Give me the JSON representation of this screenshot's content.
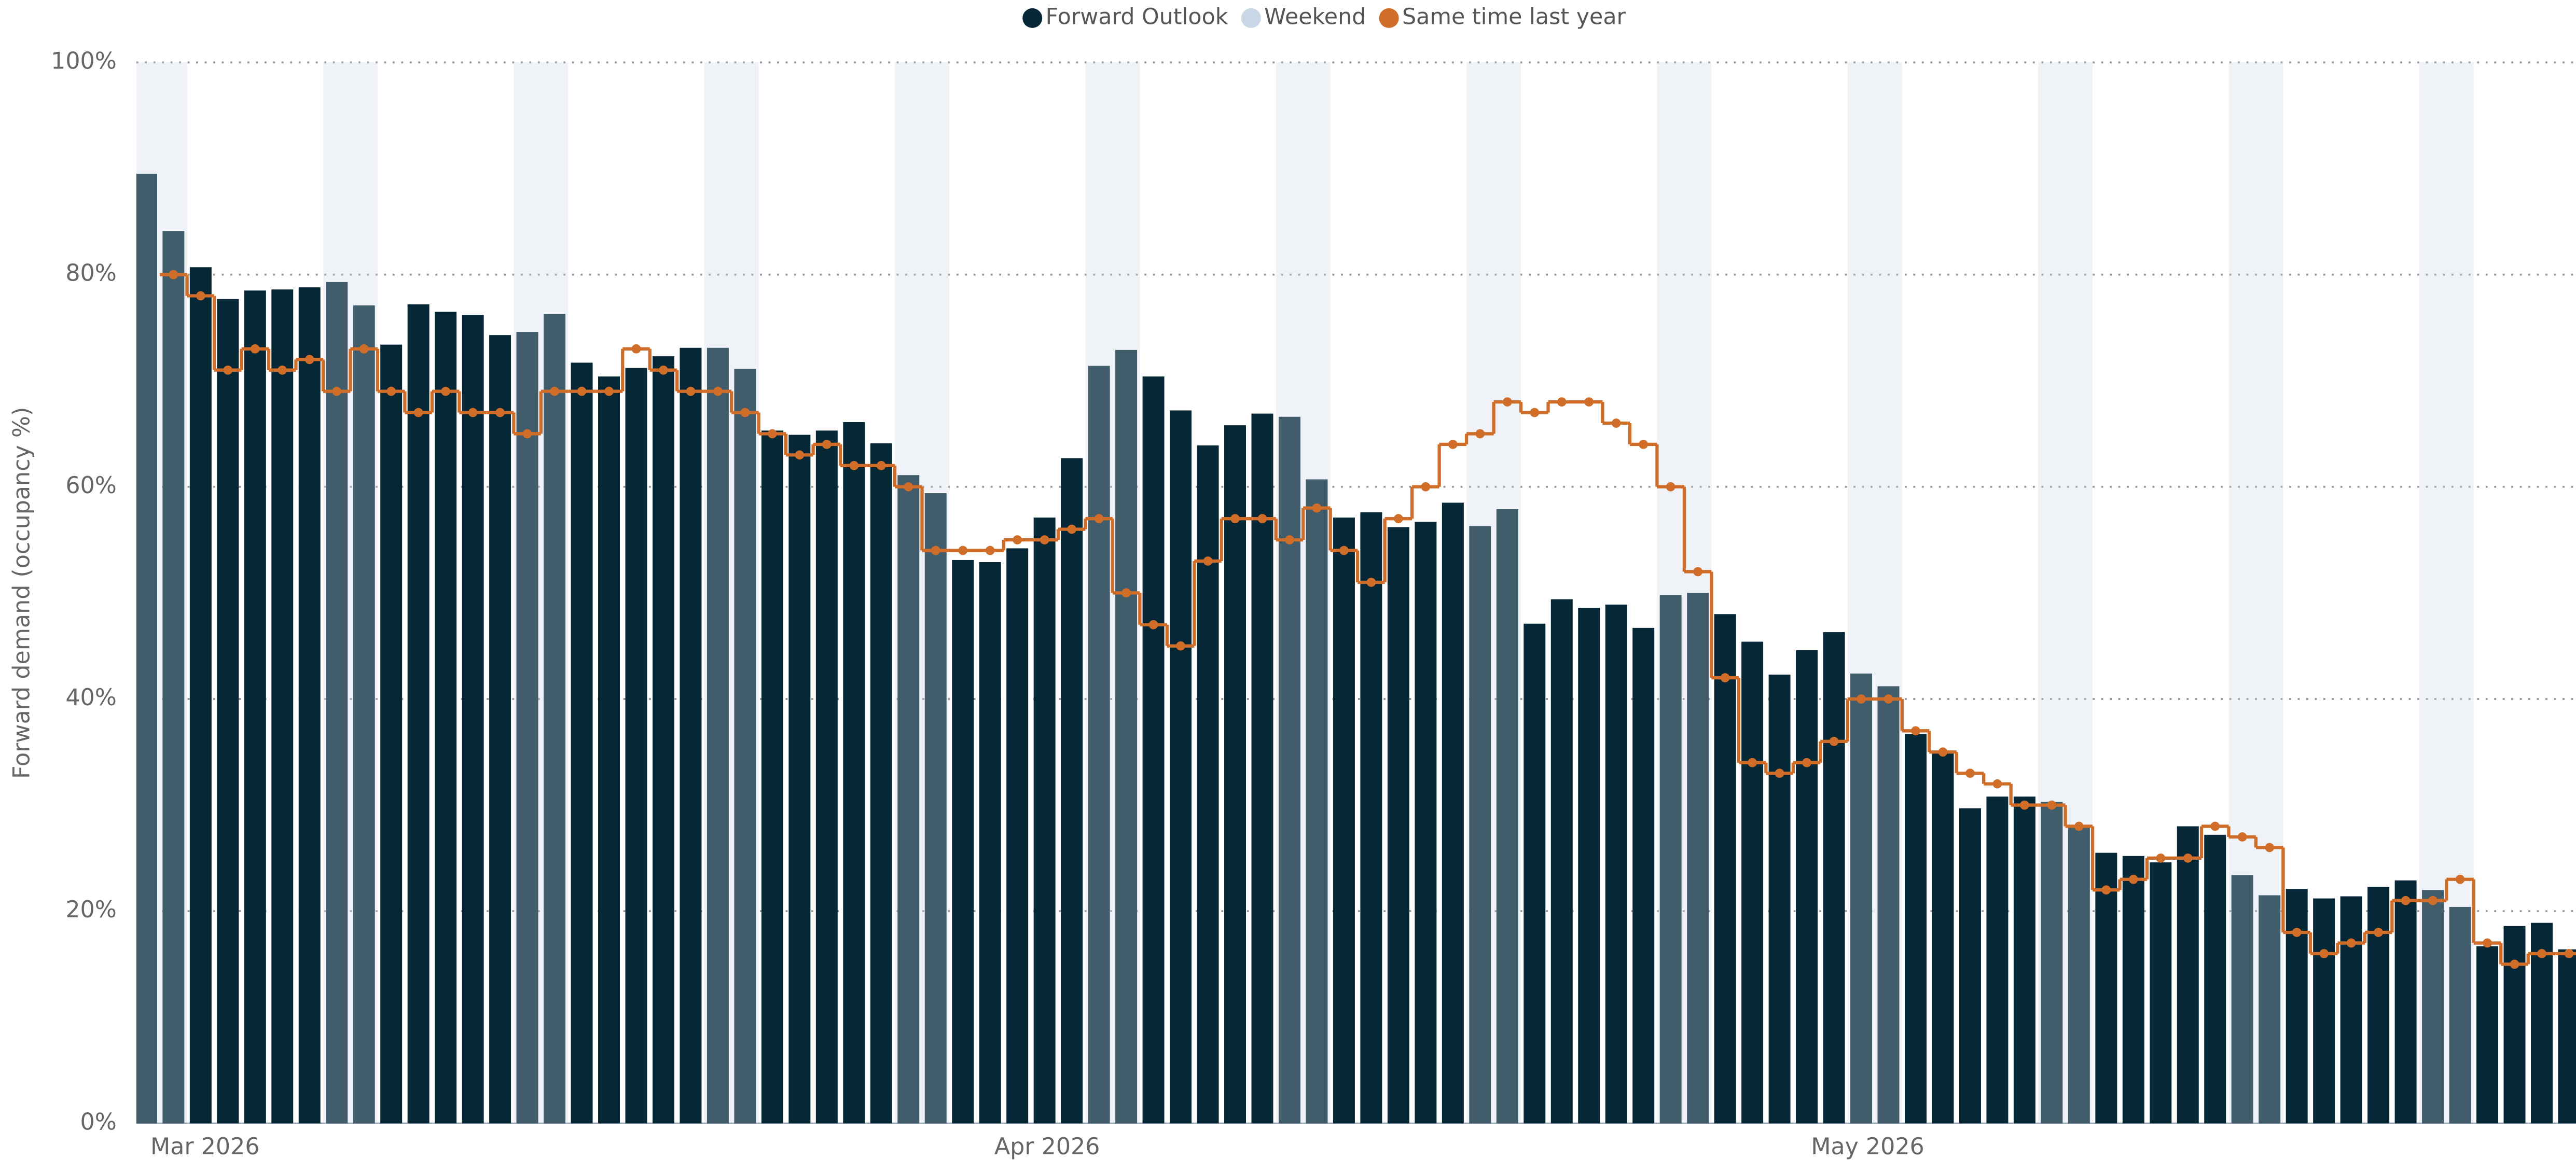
{
  "chart_data": {
    "type": "bar",
    "y_label": "Forward demand (occupancy %)",
    "categories": [
      null,
      "Mar 2026",
      null,
      null,
      null,
      null,
      null,
      null,
      null,
      null,
      null,
      null,
      null,
      null,
      null,
      null,
      null,
      null,
      null,
      null,
      null,
      null,
      null,
      null,
      null,
      null,
      null,
      null,
      null,
      null,
      null,
      null,
      "Apr 2026",
      null,
      null,
      null,
      null,
      null,
      null,
      null,
      null,
      null,
      null,
      null,
      null,
      null,
      null,
      null,
      null,
      null,
      null,
      null,
      null,
      null,
      null,
      null,
      null,
      null,
      null,
      null,
      null,
      null,
      "May 2026",
      null,
      null,
      null,
      null,
      null,
      null,
      null,
      null,
      null,
      null,
      null,
      null,
      null,
      null,
      null,
      null,
      null,
      null,
      null,
      null,
      null,
      null,
      null,
      null,
      null,
      null,
      null
    ],
    "series": [
      {
        "name": "Forward Outlook",
        "type": "bar",
        "color": "#062736",
        "values": [
          89.5,
          84.1,
          80.7,
          77.7,
          78.5,
          78.6,
          78.8,
          79.3,
          77.1,
          73.4,
          77.2,
          76.5,
          76.2,
          74.3,
          74.6,
          76.3,
          71.7,
          70.4,
          71.2,
          72.3,
          73.1,
          73.1,
          71.1,
          65.3,
          64.9,
          65.3,
          66.1,
          64.1,
          61.1,
          59.4,
          53.1,
          52.9,
          54.2,
          57.1,
          62.7,
          71.4,
          72.9,
          70.4,
          67.2,
          63.9,
          65.8,
          66.9,
          66.6,
          60.7,
          57.1,
          57.6,
          56.2,
          56.7,
          58.5,
          56.3,
          57.9,
          47.1,
          49.4,
          48.6,
          48.9,
          46.7,
          49.8,
          50,
          48,
          45.4,
          42.3,
          44.6,
          46.3,
          42.4,
          41.2,
          36.7,
          35,
          29.7,
          30.8,
          30.8,
          30.3,
          28,
          25.5,
          25.2,
          24.6,
          28,
          27.2,
          23.4,
          21.5,
          22.1,
          21.2,
          21.4,
          22.3,
          22.9,
          22,
          20.4,
          16.7,
          18.6,
          18.9,
          16.4
        ]
      },
      {
        "name": "Weekend",
        "type": "band",
        "color": "#c9d6e6",
        "values": [
          100,
          100,
          null,
          null,
          null,
          null,
          null,
          100,
          100,
          null,
          null,
          null,
          null,
          null,
          100,
          100,
          null,
          null,
          null,
          null,
          null,
          100,
          100,
          null,
          null,
          null,
          null,
          null,
          100,
          100,
          null,
          null,
          null,
          null,
          null,
          100,
          100,
          null,
          null,
          null,
          null,
          null,
          100,
          100,
          null,
          null,
          null,
          null,
          null,
          100,
          100,
          null,
          null,
          null,
          null,
          null,
          100,
          100,
          null,
          null,
          null,
          null,
          null,
          100,
          100,
          null,
          null,
          null,
          null,
          null,
          100,
          100,
          null,
          null,
          null,
          null,
          null,
          100,
          100,
          null,
          null,
          null,
          null,
          null,
          100,
          100,
          null,
          null,
          null,
          null
        ]
      },
      {
        "name": "Same time last year",
        "type": "step",
        "color": "#d06d28",
        "values": [
          null,
          80,
          78,
          71,
          73,
          71,
          72,
          69,
          73,
          69,
          67,
          69,
          67,
          67,
          65,
          69,
          69,
          69,
          73,
          71,
          69,
          69,
          67,
          65,
          63,
          64,
          62,
          62,
          60,
          54,
          54,
          54,
          55,
          55,
          56,
          57,
          50,
          47,
          45,
          53,
          57,
          57,
          55,
          58,
          54,
          51,
          57,
          60,
          64,
          65,
          68,
          67,
          68,
          68,
          66,
          64,
          60,
          52,
          42,
          34,
          33,
          34,
          36,
          40,
          40,
          37,
          35,
          33,
          32,
          30,
          30,
          28,
          22,
          23,
          25,
          25,
          28,
          27,
          26,
          18,
          16,
          17,
          18,
          21,
          21,
          23,
          17,
          15,
          16,
          16
        ]
      }
    ],
    "ylim": [
      0,
      100
    ],
    "yticks": [
      {
        "value": 0,
        "label": "0%"
      },
      {
        "value": 20,
        "label": "20%"
      },
      {
        "value": 40,
        "label": "40%"
      },
      {
        "value": 60,
        "label": "60%"
      },
      {
        "value": 80,
        "label": "80%"
      },
      {
        "value": 100,
        "label": "100%"
      }
    ],
    "grid": true,
    "legend": "top"
  }
}
